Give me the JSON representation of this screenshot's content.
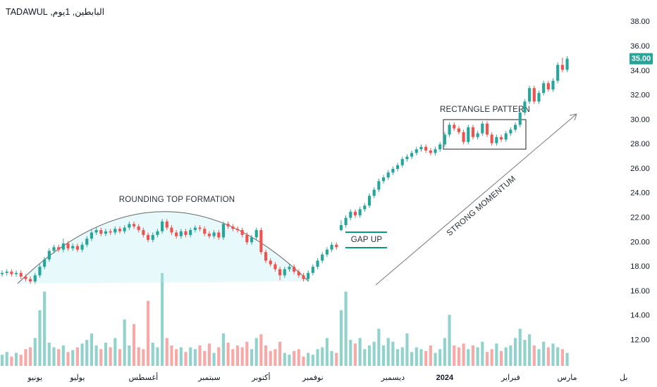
{
  "header": {
    "symbol_line": "البابطين, 1يوم, TADAWUL"
  },
  "chart_data": {
    "type": "candlestick",
    "up_color": "#26a69a",
    "down_color": "#ef5350",
    "grid": false,
    "xlim": [
      -0.45,
      129.8
    ],
    "ylim": [
      9.9,
      39.8
    ],
    "yticks": [
      {
        "value": 12,
        "label": "12.00"
      },
      {
        "value": 14,
        "label": "14.00"
      },
      {
        "value": 16,
        "label": "16.00"
      },
      {
        "value": 18,
        "label": "18.00"
      },
      {
        "value": 20,
        "label": "20.00"
      },
      {
        "value": 22,
        "label": "22.00"
      },
      {
        "value": 24,
        "label": "24.00"
      },
      {
        "value": 26,
        "label": "26.00"
      },
      {
        "value": 28,
        "label": "28.00"
      },
      {
        "value": 30,
        "label": "30.00"
      },
      {
        "value": 32,
        "label": "32.00"
      },
      {
        "value": 34,
        "label": "34.00"
      },
      {
        "value": 36,
        "label": "36.00"
      },
      {
        "value": 38,
        "label": "38.00"
      }
    ],
    "xticks": [
      {
        "value": 7,
        "label": "يونيو"
      },
      {
        "value": 16,
        "label": "يوليو"
      },
      {
        "value": 30,
        "label": "أغسطس"
      },
      {
        "value": 44,
        "label": "سبتمبر"
      },
      {
        "value": 55,
        "label": "أكتوبر"
      },
      {
        "value": 66,
        "label": "نوفمبر"
      },
      {
        "value": 83,
        "label": "ديسمبر"
      },
      {
        "value": 94,
        "label": "2024"
      },
      {
        "value": 108,
        "label": "فبراير"
      },
      {
        "value": 120,
        "label": "مارس"
      },
      {
        "value": 132,
        "label": "بل"
      }
    ],
    "last_price": {
      "value": 35,
      "label": "35.00"
    },
    "annotations": {
      "rounding_top": "ROUNDING TOP FORMATION",
      "gap_up": "GAP UP",
      "rectangle": "RECTANGLE PATTERN",
      "momentum": "STRONG MOMENTUM"
    },
    "open": [
      17.4,
      17.5,
      17.6,
      17.4,
      17.5,
      17.2,
      17.0,
      16.8,
      17.3,
      18.0,
      18.6,
      19.3,
      19.6,
      19.4,
      19.9,
      19.5,
      19.7,
      19.4,
      19.8,
      20.3,
      20.8,
      21.0,
      20.7,
      20.9,
      20.8,
      21.1,
      20.9,
      21.2,
      21.5,
      21.3,
      21.0,
      20.6,
      20.2,
      20.6,
      20.9,
      21.7,
      21.2,
      20.8,
      20.5,
      20.9,
      20.6,
      21.0,
      21.2,
      21.1,
      20.7,
      20.5,
      20.8,
      20.4,
      21.5,
      21.3,
      21.1,
      21.0,
      20.6,
      20.0,
      20.4,
      21.0,
      19.2,
      18.5,
      18.2,
      17.8,
      17.3,
      17.8,
      18.0,
      17.6,
      17.3,
      17.0,
      17.5,
      18.0,
      18.5,
      19.0,
      19.4,
      19.8,
      21.0,
      21.4,
      22.0,
      22.5,
      22.2,
      22.7,
      23.0,
      23.8,
      24.3,
      25.0,
      25.3,
      25.7,
      26.0,
      26.3,
      26.8,
      27.0,
      27.3,
      27.6,
      27.8,
      27.5,
      27.3,
      27.6,
      28.0,
      28.8,
      29.6,
      29.3,
      29.0,
      28.2,
      29.4,
      28.6,
      28.9,
      29.7,
      28.8,
      28.1,
      28.6,
      28.4,
      28.9,
      29.2,
      29.6,
      30.6,
      31.5,
      32.6,
      31.5,
      32.2,
      33.0,
      32.5,
      33.2,
      34.5,
      34.1
    ],
    "high": [
      17.7,
      17.8,
      17.8,
      17.7,
      17.7,
      17.4,
      17.2,
      17.5,
      18.2,
      18.8,
      19.5,
      19.8,
      19.8,
      20.3,
      20.1,
      19.9,
      19.9,
      20.0,
      20.5,
      21.0,
      21.2,
      21.2,
      21.1,
      21.1,
      21.3,
      21.3,
      21.4,
      21.7,
      21.7,
      21.5,
      21.2,
      20.8,
      20.8,
      21.1,
      21.9,
      21.9,
      21.4,
      21.0,
      21.1,
      21.1,
      21.2,
      21.4,
      21.4,
      21.3,
      20.9,
      21.0,
      21.0,
      21.7,
      21.7,
      21.5,
      21.3,
      21.2,
      20.8,
      20.6,
      21.2,
      21.2,
      19.4,
      18.7,
      18.4,
      18.0,
      18.0,
      18.2,
      18.2,
      17.8,
      17.5,
      17.7,
      18.2,
      18.7,
      19.2,
      19.6,
      20.0,
      20.0,
      21.8,
      22.2,
      22.7,
      22.7,
      22.9,
      23.2,
      24.0,
      24.5,
      25.2,
      25.5,
      25.9,
      26.2,
      26.5,
      27.0,
      27.2,
      27.5,
      27.8,
      28.0,
      28.0,
      27.7,
      27.8,
      28.2,
      29.0,
      29.8,
      29.8,
      29.5,
      29.2,
      29.6,
      29.6,
      29.1,
      29.9,
      29.9,
      29.0,
      28.8,
      28.8,
      29.1,
      29.4,
      29.8,
      30.8,
      31.7,
      32.8,
      32.8,
      32.4,
      33.2,
      33.2,
      33.4,
      34.7,
      35.1,
      35.2
    ],
    "low": [
      17.2,
      17.3,
      17.2,
      17.2,
      17.0,
      16.8,
      16.6,
      16.6,
      17.1,
      17.8,
      18.4,
      19.1,
      19.2,
      19.2,
      19.3,
      19.3,
      19.2,
      19.2,
      19.6,
      20.1,
      20.6,
      20.5,
      20.5,
      20.6,
      20.6,
      20.7,
      20.7,
      21.0,
      21.1,
      20.8,
      20.4,
      20.0,
      20.0,
      20.4,
      20.7,
      21.0,
      20.6,
      20.3,
      20.3,
      20.4,
      20.4,
      20.8,
      20.9,
      20.5,
      20.3,
      20.3,
      20.2,
      20.2,
      21.1,
      20.9,
      20.8,
      20.4,
      19.8,
      19.8,
      20.2,
      19.0,
      18.3,
      18.0,
      17.6,
      16.9,
      17.1,
      17.6,
      17.4,
      17.1,
      16.8,
      16.8,
      17.3,
      17.8,
      18.3,
      18.8,
      19.2,
      19.4,
      20.9,
      21.2,
      21.8,
      22.0,
      22.0,
      22.5,
      22.8,
      23.6,
      24.1,
      24.8,
      25.1,
      25.5,
      25.8,
      26.1,
      26.6,
      26.8,
      27.1,
      27.4,
      27.3,
      27.1,
      27.1,
      27.4,
      27.8,
      28.6,
      29.1,
      28.8,
      28.0,
      28.0,
      28.4,
      28.4,
      28.7,
      28.6,
      27.9,
      27.9,
      28.2,
      28.2,
      28.7,
      29.0,
      29.4,
      30.4,
      31.3,
      31.3,
      31.3,
      32.0,
      32.3,
      32.3,
      33.0,
      33.9,
      33.9
    ],
    "close": [
      17.5,
      17.6,
      17.4,
      17.5,
      17.2,
      17.0,
      16.8,
      17.3,
      18.0,
      18.6,
      19.3,
      19.6,
      19.4,
      19.9,
      19.5,
      19.7,
      19.4,
      19.8,
      20.3,
      20.8,
      21.0,
      20.7,
      20.9,
      20.8,
      21.1,
      20.9,
      21.2,
      21.5,
      21.3,
      21.0,
      20.6,
      20.2,
      20.6,
      20.9,
      21.7,
      21.2,
      20.8,
      20.5,
      20.9,
      20.6,
      21.0,
      21.2,
      21.1,
      20.7,
      20.5,
      20.8,
      20.4,
      21.5,
      21.3,
      21.1,
      21.0,
      20.6,
      20.0,
      20.4,
      21.0,
      19.2,
      18.5,
      18.2,
      17.8,
      17.3,
      17.8,
      18.0,
      17.6,
      17.3,
      17.0,
      17.5,
      18.0,
      18.5,
      19.0,
      19.4,
      19.8,
      19.6,
      21.4,
      22.0,
      22.5,
      22.2,
      22.7,
      23.0,
      23.8,
      24.3,
      25.0,
      25.3,
      25.7,
      26.0,
      26.3,
      26.8,
      27.0,
      27.3,
      27.6,
      27.8,
      27.5,
      27.3,
      27.6,
      28.0,
      28.8,
      29.6,
      29.3,
      29.0,
      28.2,
      29.4,
      28.6,
      28.9,
      29.7,
      28.8,
      28.1,
      28.6,
      28.4,
      28.9,
      29.2,
      29.6,
      30.6,
      31.5,
      32.6,
      31.5,
      32.2,
      33.0,
      32.5,
      33.2,
      34.5,
      34.1,
      35.0
    ],
    "volume": [
      12,
      15,
      10,
      14,
      12,
      18,
      20,
      30,
      60,
      80,
      25,
      20,
      18,
      22,
      15,
      17,
      20,
      24,
      28,
      35,
      22,
      18,
      25,
      20,
      30,
      18,
      50,
      22,
      45,
      20,
      18,
      70,
      25,
      20,
      100,
      30,
      22,
      18,
      20,
      15,
      20,
      18,
      22,
      16,
      24,
      14,
      20,
      35,
      25,
      18,
      22,
      20,
      26,
      18,
      30,
      34,
      22,
      16,
      18,
      26,
      14,
      12,
      16,
      18,
      10,
      14,
      12,
      18,
      20,
      30,
      16,
      14,
      60,
      80,
      28,
      24,
      30,
      18,
      22,
      26,
      40,
      22,
      30,
      26,
      18,
      20,
      35,
      15,
      20,
      18,
      16,
      22,
      14,
      18,
      30,
      55,
      22,
      20,
      24,
      18,
      22,
      20,
      26,
      15,
      18,
      24,
      16,
      20,
      22,
      30,
      40,
      28,
      34,
      22,
      18,
      26,
      20,
      24,
      20,
      18,
      14
    ]
  }
}
